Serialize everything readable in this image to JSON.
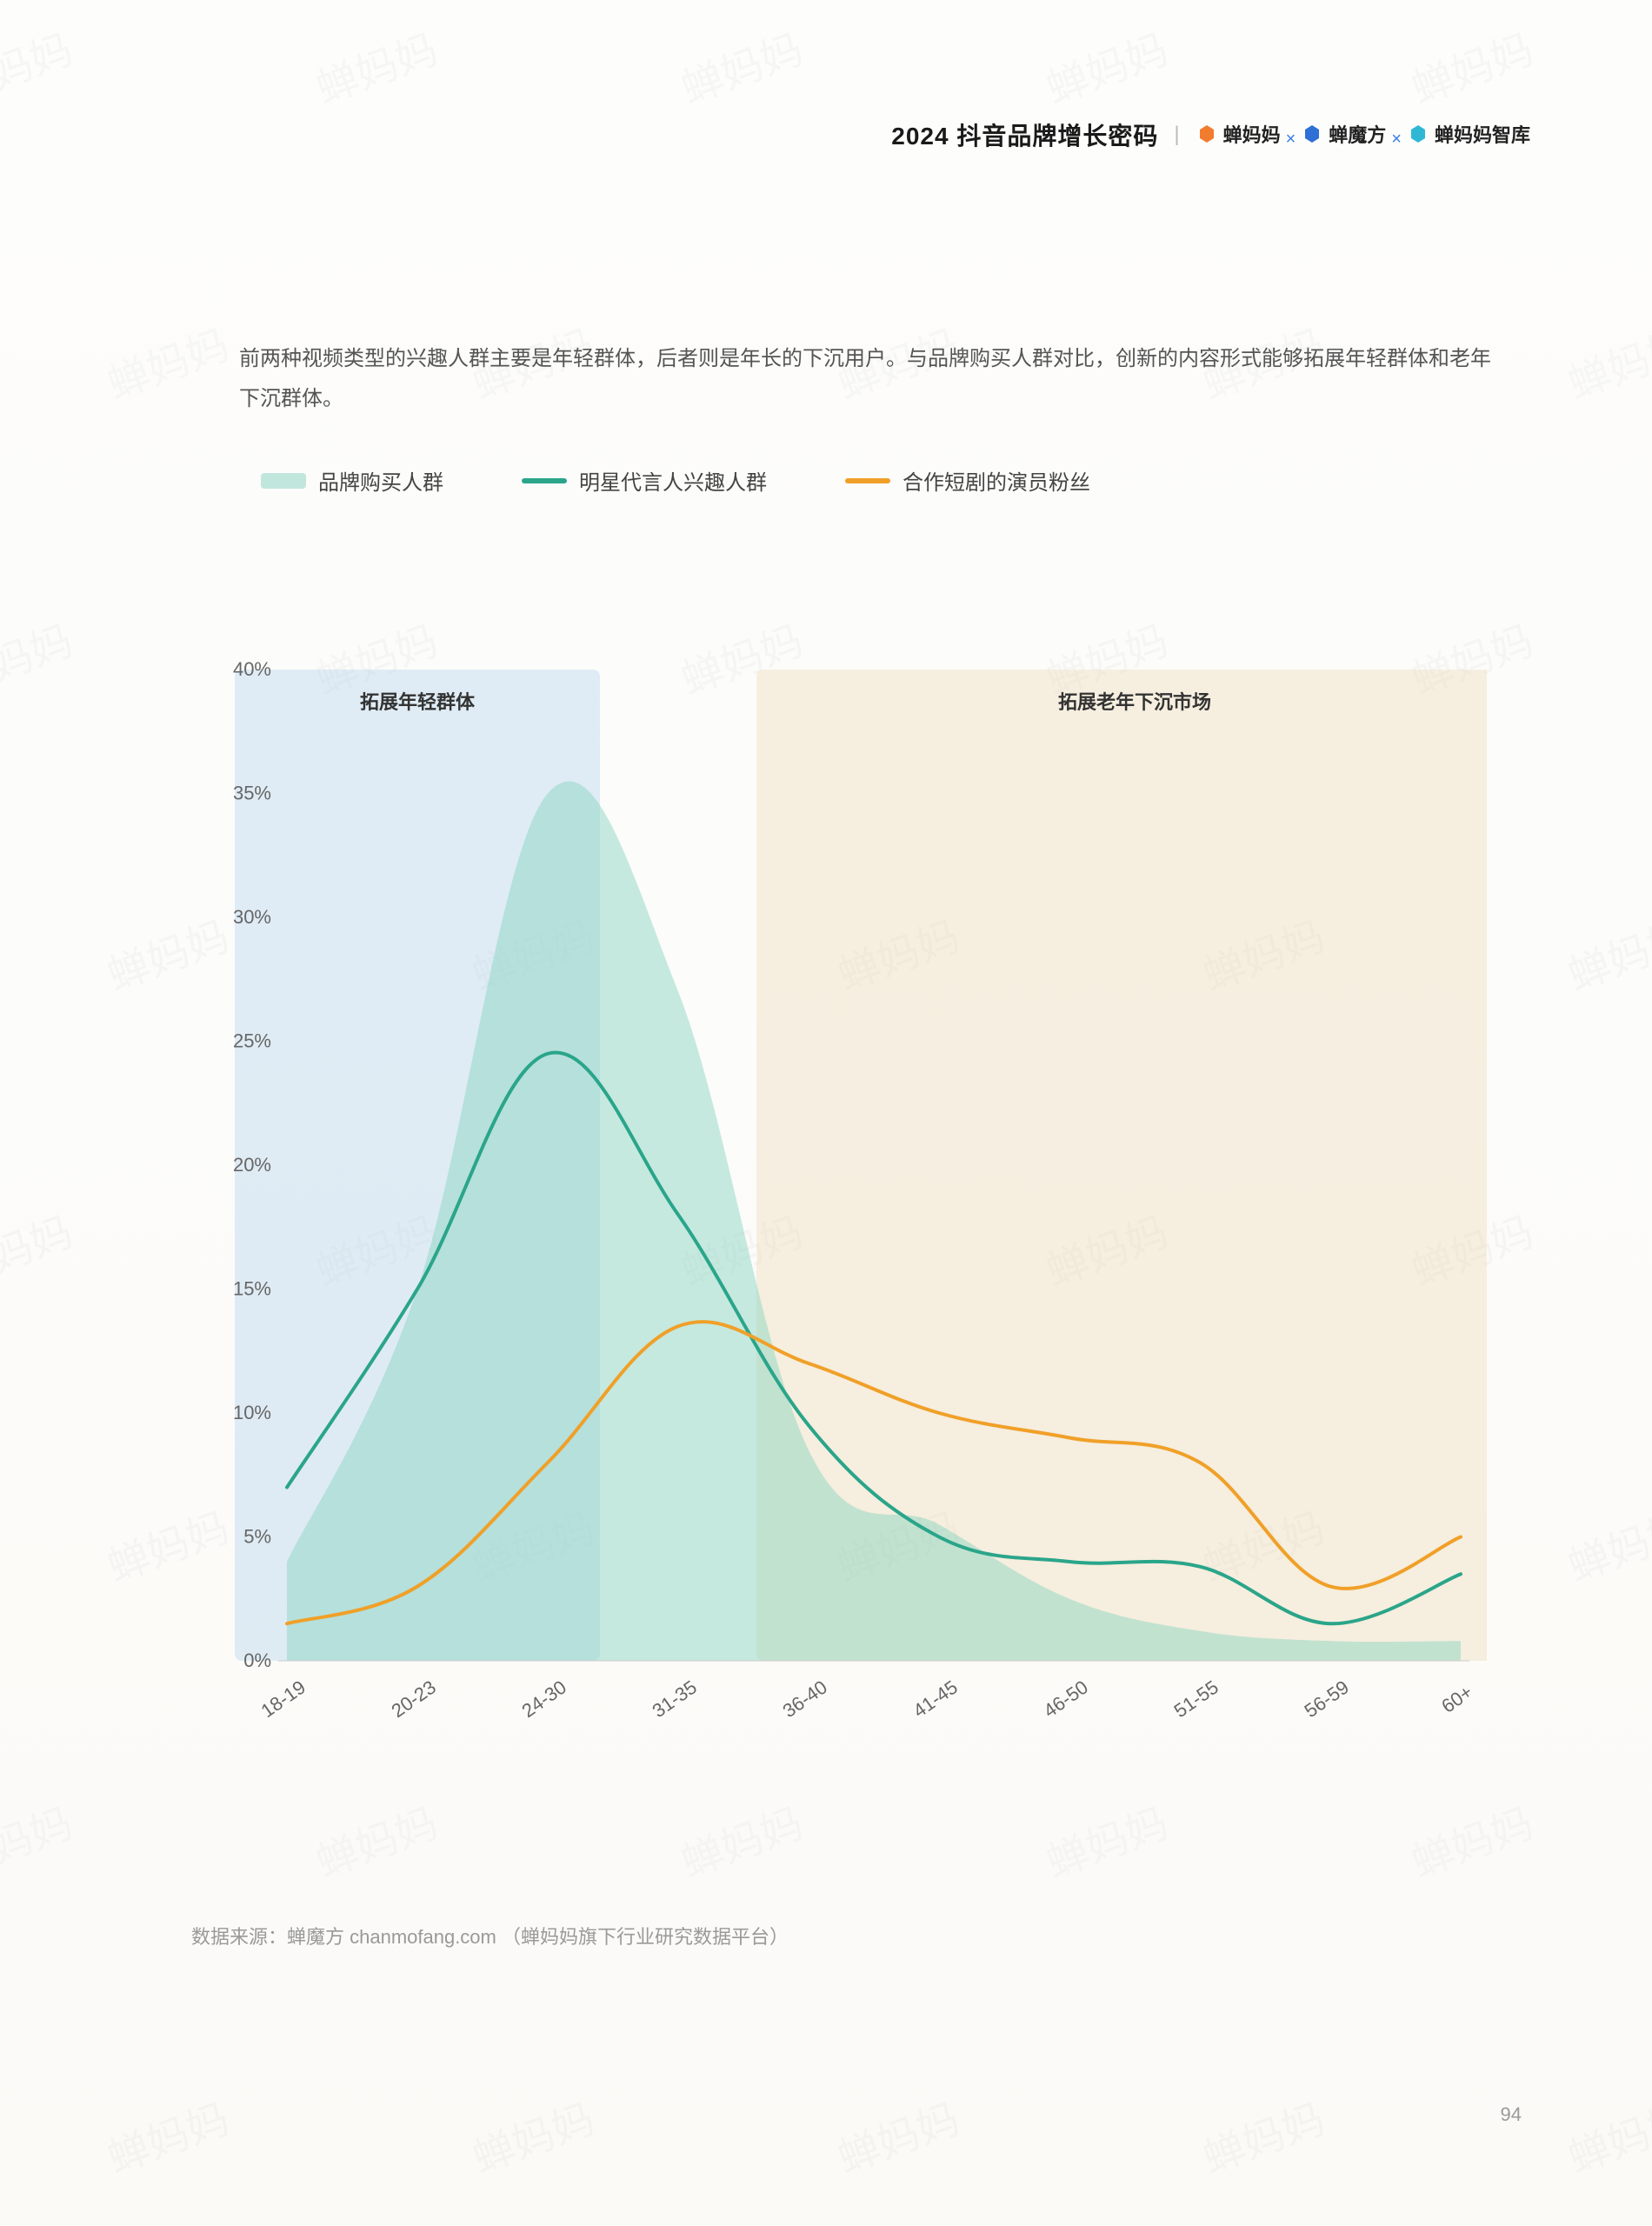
{
  "header": {
    "title": "2024 抖音品牌增长密码",
    "brands": [
      {
        "name": "蝉妈妈",
        "icon_color": "#f27c2e"
      },
      {
        "name": "蝉魔方",
        "icon_color": "#2f6fd6"
      },
      {
        "name": "蝉妈妈智库",
        "icon_color": "#2fb8d6"
      }
    ],
    "separator": "×"
  },
  "intro_text": "前两种视频类型的兴趣人群主要是年轻群体，后者则是年长的下沉用户。与品牌购买人群对比，创新的内容形式能够拓展年轻群体和老年下沉群体。",
  "chart": {
    "type": "line+area",
    "legend": [
      {
        "label": "品牌购买人群",
        "color": "#8fd6c4",
        "style": "area"
      },
      {
        "label": "明星代言人兴趣人群",
        "color": "#2aa58a",
        "style": "line"
      },
      {
        "label": "合作短剧的演员粉丝",
        "color": "#f0a028",
        "style": "line"
      }
    ],
    "x_categories": [
      "18-19",
      "20-23",
      "24-30",
      "31-35",
      "36-40",
      "41-45",
      "46-50",
      "51-55",
      "56-59",
      "60+"
    ],
    "ylim": [
      0,
      40
    ],
    "ytick_step": 5,
    "y_format": "percent",
    "series": {
      "area": {
        "name": "品牌购买人群",
        "color_fill": "rgba(130, 210, 190, 0.45)",
        "values": [
          4,
          15,
          35,
          27,
          8.5,
          5.5,
          2.5,
          1.2,
          0.8,
          0.8
        ]
      },
      "line_green": {
        "name": "明星代言人兴趣人群",
        "color": "#2aa58a",
        "stroke_width": 4,
        "values": [
          7,
          15,
          24.5,
          18,
          9.5,
          5,
          4,
          3.8,
          1.5,
          3.5
        ]
      },
      "line_orange": {
        "name": "合作短剧的演员粉丝",
        "color": "#f0a028",
        "stroke_width": 4,
        "values": [
          1.5,
          3,
          8,
          13.5,
          12,
          10,
          9,
          8,
          3,
          5
        ]
      }
    },
    "highlight_bands": [
      {
        "x_start": "18-19",
        "x_end": "24-30",
        "color": "rgba(170, 205, 235, 0.35)",
        "label": "拓展年轻群体"
      },
      {
        "x_start": "36-40",
        "x_end": "60+",
        "color": "rgba(235, 215, 175, 0.35)",
        "label": "拓展老年下沉市场"
      }
    ],
    "background_color": "#fdfdfb",
    "grid_color": "#e8e8e8",
    "axis_label_color": "#666666",
    "axis_label_fontsize": 22,
    "annotation_fontsize": 22,
    "x_label_rotation": -35
  },
  "footer": {
    "source_text": "数据来源：蝉魔方 chanmofang.com （蝉妈妈旗下行业研究数据平台）",
    "page_number": "94"
  },
  "watermark_text": "蝉妈妈"
}
